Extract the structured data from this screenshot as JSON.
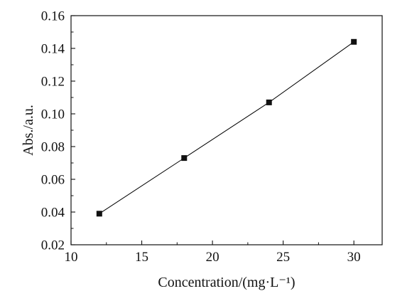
{
  "chart_data": {
    "type": "line",
    "title": "",
    "xlabel": "Concentration/(mg·L⁻¹)",
    "ylabel": "Abs./a.u.",
    "xlim": [
      10,
      32
    ],
    "ylim": [
      0.02,
      0.16
    ],
    "x_ticks": [
      "10",
      "15",
      "20",
      "25",
      "30"
    ],
    "y_ticks": [
      "0.02",
      "0.04",
      "0.06",
      "0.08",
      "0.10",
      "0.12",
      "0.14",
      "0.16"
    ],
    "grid": false,
    "legend": "none",
    "marker": "square",
    "series": [
      {
        "x": [
          12,
          18,
          24,
          30
        ],
        "y": [
          0.039,
          0.073,
          0.107,
          0.144
        ]
      }
    ],
    "colors": {
      "line": "#000000",
      "marker": "#111111"
    }
  }
}
